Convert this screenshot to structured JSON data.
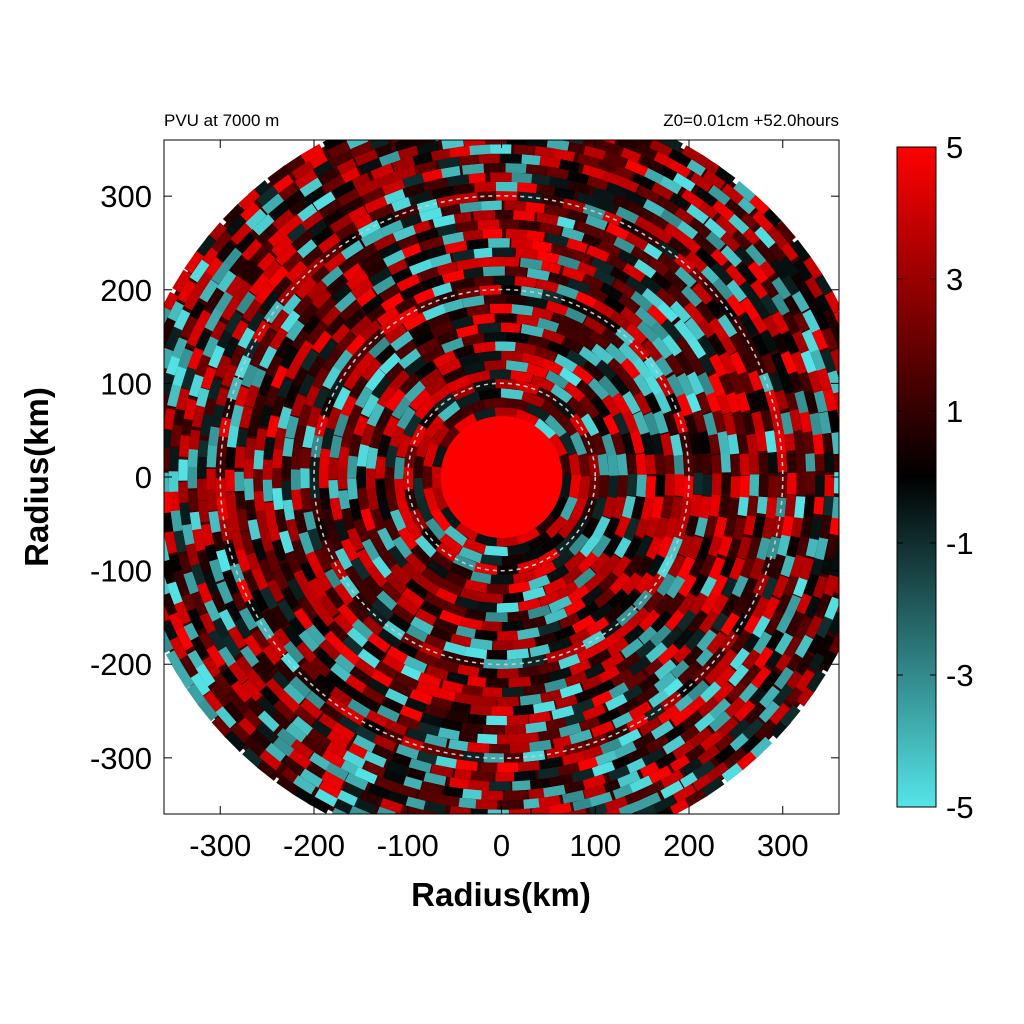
{
  "chart_data": {
    "type": "heatmap",
    "title_left": "PVU at  7000 m",
    "title_right": "Z0=0.01cm  +52.0hours",
    "xlabel": "Radius(km)",
    "ylabel": "Radius(km)",
    "xlim": [
      -360,
      360
    ],
    "ylim": [
      -360,
      360
    ],
    "xticks": [
      -300,
      -200,
      -100,
      0,
      100,
      200,
      300
    ],
    "yticks": [
      300,
      200,
      100,
      0,
      -100,
      -200,
      -300
    ],
    "xtick_labels": [
      "-300",
      "-200",
      "-100",
      "0",
      "100",
      "200",
      "300"
    ],
    "ytick_labels": [
      "300",
      "200",
      "100",
      "0",
      "-100",
      "-200",
      "-300"
    ],
    "domain_radius": 400,
    "reference_circles_km": [
      100,
      200,
      300
    ],
    "colorbar": {
      "min": -5,
      "max": 5,
      "tick_values": [
        5,
        3,
        1,
        -1,
        -3,
        -5
      ],
      "tick_labels": [
        "5",
        "3",
        "1",
        "-1",
        "-3",
        "-5"
      ],
      "colors": [
        "#55e5e8",
        "#000000",
        "#ff0000"
      ]
    },
    "core": {
      "value": 5,
      "approx_radius_km": 65
    },
    "field_description": "Radial-azimuthal field: saturated core (>5) inside ~65 km, alternating red and cyan patches beyond."
  }
}
